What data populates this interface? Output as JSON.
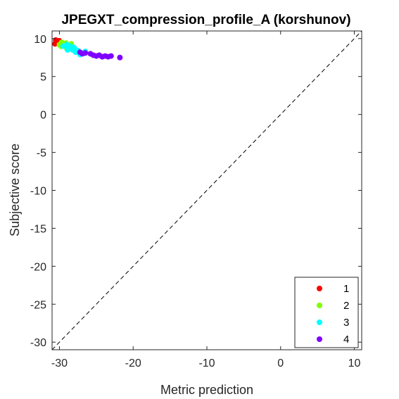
{
  "chart_data": {
    "type": "scatter",
    "title": "JPEGXT_compression_profile_A (korshunov)",
    "xlabel": "Metric prediction",
    "ylabel": "Subjective score",
    "xlim": [
      -31,
      11
    ],
    "ylim": [
      -31,
      11
    ],
    "xticks": [
      -30,
      -20,
      -10,
      0,
      10
    ],
    "yticks": [
      10,
      5,
      0,
      -5,
      -10,
      -15,
      -20,
      -25,
      -30
    ],
    "grid": false,
    "legend_position": "bottom-right",
    "reference_line": {
      "style": "dashed",
      "color": "#000000",
      "from": [
        -31,
        -31
      ],
      "to": [
        11,
        11
      ]
    },
    "series": [
      {
        "name": "1",
        "color": "#ff0000",
        "points": [
          [
            -30.6,
            9.3
          ],
          [
            -30.5,
            9.5
          ],
          [
            -30.4,
            9.6
          ],
          [
            -30.3,
            9.7
          ],
          [
            -30.2,
            9.5
          ],
          [
            -30.1,
            9.6
          ],
          [
            -30.0,
            9.7
          ],
          [
            -29.9,
            9.4
          ],
          [
            -30.5,
            9.8
          ],
          [
            -30.3,
            9.4
          ]
        ]
      },
      {
        "name": "2",
        "color": "#80ff00",
        "points": [
          [
            -30.0,
            9.2
          ],
          [
            -29.7,
            9.5
          ],
          [
            -29.5,
            9.3
          ],
          [
            -29.3,
            9.0
          ],
          [
            -29.1,
            9.4
          ],
          [
            -28.8,
            9.1
          ],
          [
            -28.6,
            8.8
          ],
          [
            -28.4,
            9.3
          ],
          [
            -28.2,
            8.9
          ],
          [
            -28.0,
            8.6
          ],
          [
            -29.8,
            9.0
          ],
          [
            -29.0,
            8.7
          ]
        ]
      },
      {
        "name": "3",
        "color": "#00ffff",
        "points": [
          [
            -29.5,
            9.0
          ],
          [
            -29.0,
            9.2
          ],
          [
            -28.7,
            8.8
          ],
          [
            -28.5,
            9.0
          ],
          [
            -28.2,
            8.5
          ],
          [
            -28.0,
            8.8
          ],
          [
            -27.8,
            8.2
          ],
          [
            -27.5,
            8.4
          ],
          [
            -27.2,
            7.9
          ],
          [
            -26.8,
            8.0
          ],
          [
            -26.5,
            8.3
          ],
          [
            -28.9,
            8.5
          ]
        ]
      },
      {
        "name": "4",
        "color": "#8000ff",
        "points": [
          [
            -27.2,
            8.2
          ],
          [
            -26.9,
            8.0
          ],
          [
            -26.5,
            8.1
          ],
          [
            -25.8,
            8.0
          ],
          [
            -25.4,
            7.8
          ],
          [
            -25.0,
            7.7
          ],
          [
            -24.6,
            7.8
          ],
          [
            -24.2,
            7.6
          ],
          [
            -23.8,
            7.7
          ],
          [
            -23.4,
            7.6
          ],
          [
            -23.0,
            7.7
          ],
          [
            -21.8,
            7.5
          ]
        ]
      }
    ]
  }
}
